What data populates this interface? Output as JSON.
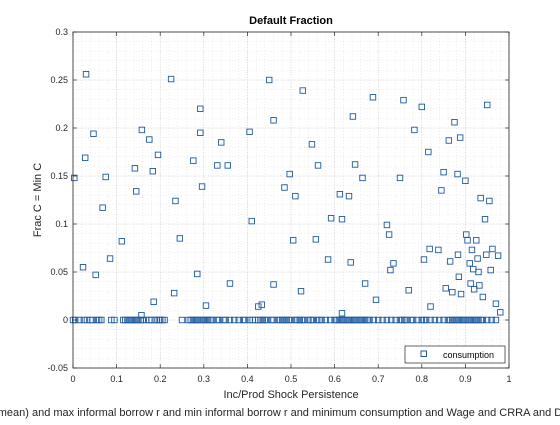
{
  "window": {
    "background": "#ffffff"
  },
  "chart_data": {
    "type": "scatter",
    "title": "Default Fraction",
    "xlabel": "Inc/Prod Shock Persistence",
    "ylabel": "Frac C = Min C",
    "footer_text": "mean) and max informal borrow r and min informal borrow r and minimum consumption and Wage and CRRA and D",
    "xlim": [
      0,
      1
    ],
    "ylim": [
      -0.05,
      0.3
    ],
    "xticks": [
      0,
      0.1,
      0.2,
      0.3,
      0.4,
      0.5,
      0.6,
      0.7,
      0.8,
      0.9,
      1
    ],
    "xtick_labels": [
      "0",
      "0.1",
      "0.2",
      "0.3",
      "0.4",
      "0.5",
      "0.6",
      "0.7",
      "0.8",
      "0.9",
      "1"
    ],
    "yticks": [
      -0.05,
      0,
      0.05,
      0.1,
      0.15,
      0.2,
      0.25,
      0.3
    ],
    "ytick_labels": [
      "-0.05",
      "0",
      "0.05",
      "0.1",
      "0.15",
      "0.2",
      "0.25",
      "0.3"
    ],
    "grid": "major and minor dotted",
    "legend_position": "bottom-right",
    "series": [
      {
        "name": "consumption",
        "color": "#1f5a9e",
        "marker": "square-open",
        "points": [
          [
            0.03,
            0.256
          ],
          [
            0.003,
            0.148
          ],
          [
            0.028,
            0.169
          ],
          [
            0.047,
            0.194
          ],
          [
            0.075,
            0.149
          ],
          [
            0.068,
            0.117
          ],
          [
            0.023,
            0.055
          ],
          [
            0.052,
            0.047
          ],
          [
            0.085,
            0.064
          ],
          [
            0.112,
            0.082
          ],
          [
            0.142,
            0.158
          ],
          [
            0.145,
            0.134
          ],
          [
            0.158,
            0.198
          ],
          [
            0.175,
            0.188
          ],
          [
            0.183,
            0.155
          ],
          [
            0.195,
            0.172
          ],
          [
            0.157,
            0.005
          ],
          [
            0.185,
            0.019
          ],
          [
            0.225,
            0.251
          ],
          [
            0.235,
            0.124
          ],
          [
            0.245,
            0.085
          ],
          [
            0.232,
            0.028
          ],
          [
            0.276,
            0.166
          ],
          [
            0.285,
            0.048
          ],
          [
            0.292,
            0.195
          ],
          [
            0.292,
            0.22
          ],
          [
            0.296,
            0.139
          ],
          [
            0.305,
            0.015
          ],
          [
            0.331,
            0.161
          ],
          [
            0.34,
            0.185
          ],
          [
            0.355,
            0.161
          ],
          [
            0.36,
            0.038
          ],
          [
            0.405,
            0.196
          ],
          [
            0.41,
            0.103
          ],
          [
            0.425,
            0.014
          ],
          [
            0.433,
            0.016
          ],
          [
            0.45,
            0.25
          ],
          [
            0.46,
            0.208
          ],
          [
            0.46,
            0.037
          ],
          [
            0.485,
            0.138
          ],
          [
            0.497,
            0.152
          ],
          [
            0.505,
            0.083
          ],
          [
            0.51,
            0.129
          ],
          [
            0.527,
            0.239
          ],
          [
            0.523,
            0.03
          ],
          [
            0.548,
            0.183
          ],
          [
            0.557,
            0.084
          ],
          [
            0.562,
            0.161
          ],
          [
            0.592,
            0.106
          ],
          [
            0.585,
            0.063
          ],
          [
            0.612,
            0.131
          ],
          [
            0.617,
            0.105
          ],
          [
            0.617,
            0.007
          ],
          [
            0.633,
            0.129
          ],
          [
            0.637,
            0.06
          ],
          [
            0.642,
            0.212
          ],
          [
            0.647,
            0.162
          ],
          [
            0.664,
            0.148
          ],
          [
            0.67,
            0.038
          ],
          [
            0.688,
            0.232
          ],
          [
            0.695,
            0.021
          ],
          [
            0.72,
            0.099
          ],
          [
            0.725,
            0.089
          ],
          [
            0.728,
            0.052
          ],
          [
            0.735,
            0.059
          ],
          [
            0.75,
            0.148
          ],
          [
            0.758,
            0.229
          ],
          [
            0.77,
            0.031
          ],
          [
            0.783,
            0.198
          ],
          [
            0.8,
            0.222
          ],
          [
            0.805,
            0.063
          ],
          [
            0.815,
            0.175
          ],
          [
            0.818,
            0.074
          ],
          [
            0.82,
            0.014
          ],
          [
            0.838,
            0.073
          ],
          [
            0.845,
            0.135
          ],
          [
            0.85,
            0.154
          ],
          [
            0.855,
            0.033
          ],
          [
            0.862,
            0.187
          ],
          [
            0.865,
            0.061
          ],
          [
            0.87,
            0.029
          ],
          [
            0.875,
            0.206
          ],
          [
            0.882,
            0.152
          ],
          [
            0.883,
            0.068
          ],
          [
            0.885,
            0.045
          ],
          [
            0.888,
            0.19
          ],
          [
            0.89,
            0.027
          ],
          [
            0.9,
            0.145
          ],
          [
            0.902,
            0.089
          ],
          [
            0.905,
            0.083
          ],
          [
            0.91,
            0.059
          ],
          [
            0.912,
            0.038
          ],
          [
            0.915,
            0.073
          ],
          [
            0.918,
            0.053
          ],
          [
            0.92,
            0.032
          ],
          [
            0.925,
            0.083
          ],
          [
            0.928,
            0.064
          ],
          [
            0.93,
            0.05
          ],
          [
            0.932,
            0.036
          ],
          [
            0.935,
            0.127
          ],
          [
            0.94,
            0.024
          ],
          [
            0.945,
            0.105
          ],
          [
            0.948,
            0.068
          ],
          [
            0.95,
            0.224
          ],
          [
            0.955,
            0.124
          ],
          [
            0.958,
            0.052
          ],
          [
            0.962,
            0.074
          ],
          [
            0.97,
            0.017
          ],
          [
            0.975,
            0.067
          ],
          [
            0.98,
            0.008
          ],
          [
            0.0,
            0.0
          ],
          [
            0.005,
            0.0
          ],
          [
            0.015,
            0.0
          ],
          [
            0.025,
            0.0
          ],
          [
            0.032,
            0.0
          ],
          [
            0.04,
            0.0
          ],
          [
            0.045,
            0.0
          ],
          [
            0.055,
            0.0
          ],
          [
            0.06,
            0.0
          ],
          [
            0.065,
            0.0
          ],
          [
            0.088,
            0.0
          ],
          [
            0.095,
            0.0
          ],
          [
            0.115,
            0.0
          ],
          [
            0.12,
            0.0
          ],
          [
            0.125,
            0.0
          ],
          [
            0.13,
            0.0
          ],
          [
            0.135,
            0.0
          ],
          [
            0.14,
            0.0
          ],
          [
            0.145,
            0.0
          ],
          [
            0.15,
            0.0
          ],
          [
            0.155,
            0.0
          ],
          [
            0.16,
            0.0
          ],
          [
            0.168,
            0.0
          ],
          [
            0.175,
            0.0
          ],
          [
            0.18,
            0.0
          ],
          [
            0.188,
            0.0
          ],
          [
            0.192,
            0.0
          ],
          [
            0.197,
            0.0
          ],
          [
            0.2,
            0.0
          ],
          [
            0.205,
            0.0
          ],
          [
            0.21,
            0.0
          ],
          [
            0.25,
            0.0
          ],
          [
            0.265,
            0.0
          ],
          [
            0.27,
            0.0
          ],
          [
            0.275,
            0.0
          ],
          [
            0.28,
            0.0
          ],
          [
            0.285,
            0.0
          ],
          [
            0.29,
            0.0
          ],
          [
            0.295,
            0.0
          ],
          [
            0.3,
            0.0
          ],
          [
            0.305,
            0.0
          ],
          [
            0.31,
            0.0
          ],
          [
            0.315,
            0.0
          ],
          [
            0.32,
            0.0
          ],
          [
            0.33,
            0.0
          ],
          [
            0.335,
            0.0
          ],
          [
            0.345,
            0.0
          ],
          [
            0.35,
            0.0
          ],
          [
            0.36,
            0.0
          ],
          [
            0.37,
            0.0
          ],
          [
            0.38,
            0.0
          ],
          [
            0.39,
            0.0
          ],
          [
            0.395,
            0.0
          ],
          [
            0.405,
            0.0
          ],
          [
            0.412,
            0.0
          ],
          [
            0.418,
            0.0
          ],
          [
            0.425,
            0.0
          ],
          [
            0.43,
            0.0
          ],
          [
            0.435,
            0.0
          ],
          [
            0.44,
            0.0
          ],
          [
            0.445,
            0.0
          ],
          [
            0.455,
            0.0
          ],
          [
            0.46,
            0.0
          ],
          [
            0.47,
            0.0
          ],
          [
            0.475,
            0.0
          ],
          [
            0.48,
            0.0
          ],
          [
            0.485,
            0.0
          ],
          [
            0.49,
            0.0
          ],
          [
            0.495,
            0.0
          ],
          [
            0.5,
            0.0
          ],
          [
            0.51,
            0.0
          ],
          [
            0.515,
            0.0
          ],
          [
            0.52,
            0.0
          ],
          [
            0.525,
            0.0
          ],
          [
            0.53,
            0.0
          ],
          [
            0.54,
            0.0
          ],
          [
            0.545,
            0.0
          ],
          [
            0.55,
            0.0
          ],
          [
            0.56,
            0.0
          ],
          [
            0.565,
            0.0
          ],
          [
            0.57,
            0.0
          ],
          [
            0.58,
            0.0
          ],
          [
            0.59,
            0.0
          ],
          [
            0.6,
            0.0
          ],
          [
            0.605,
            0.0
          ],
          [
            0.61,
            0.0
          ],
          [
            0.615,
            0.0
          ],
          [
            0.62,
            0.0
          ],
          [
            0.625,
            0.0
          ],
          [
            0.63,
            0.0
          ],
          [
            0.635,
            0.0
          ],
          [
            0.64,
            0.0
          ],
          [
            0.645,
            0.0
          ],
          [
            0.65,
            0.0
          ],
          [
            0.655,
            0.0
          ],
          [
            0.66,
            0.0
          ],
          [
            0.665,
            0.0
          ],
          [
            0.67,
            0.0
          ],
          [
            0.675,
            0.0
          ],
          [
            0.68,
            0.0
          ],
          [
            0.69,
            0.0
          ],
          [
            0.7,
            0.0
          ],
          [
            0.71,
            0.0
          ],
          [
            0.72,
            0.0
          ],
          [
            0.73,
            0.0
          ],
          [
            0.74,
            0.0
          ],
          [
            0.75,
            0.0
          ],
          [
            0.755,
            0.0
          ],
          [
            0.76,
            0.0
          ],
          [
            0.765,
            0.0
          ],
          [
            0.775,
            0.0
          ],
          [
            0.78,
            0.0
          ],
          [
            0.79,
            0.0
          ],
          [
            0.8,
            0.0
          ],
          [
            0.805,
            0.0
          ],
          [
            0.81,
            0.0
          ],
          [
            0.82,
            0.0
          ],
          [
            0.83,
            0.0
          ],
          [
            0.84,
            0.0
          ],
          [
            0.85,
            0.0
          ],
          [
            0.86,
            0.0
          ],
          [
            0.865,
            0.0
          ],
          [
            0.87,
            0.0
          ],
          [
            0.875,
            0.0
          ],
          [
            0.88,
            0.0
          ],
          [
            0.885,
            0.0
          ],
          [
            0.89,
            0.0
          ],
          [
            0.895,
            0.0
          ],
          [
            0.9,
            0.0
          ],
          [
            0.905,
            0.0
          ],
          [
            0.91,
            0.0
          ],
          [
            0.915,
            0.0
          ],
          [
            0.92,
            0.0
          ],
          [
            0.925,
            0.0
          ],
          [
            0.93,
            0.0
          ],
          [
            0.935,
            0.0
          ],
          [
            0.94,
            0.0
          ],
          [
            0.95,
            0.0
          ],
          [
            0.96,
            0.0
          ],
          [
            0.97,
            0.0
          ]
        ]
      }
    ]
  }
}
